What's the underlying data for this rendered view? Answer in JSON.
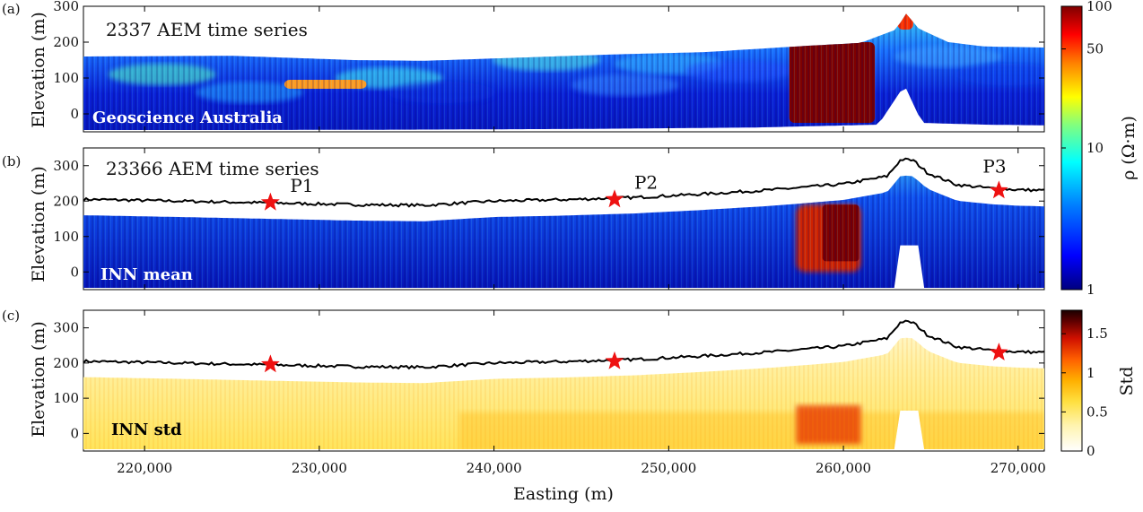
{
  "chart_data": [
    {
      "type": "heatmap",
      "panel_label": "(a)",
      "title": "2337 AEM time series",
      "overlay_label": "Geoscience Australia",
      "ylabel": "Elevation (m)",
      "xlim": [
        216500,
        271500
      ],
      "ylim": [
        -50,
        300
      ],
      "yticks": [
        0,
        100,
        200,
        300
      ],
      "ground_surface_top": [
        [
          216500,
          160
        ],
        [
          225000,
          162
        ],
        [
          232000,
          150
        ],
        [
          236000,
          148
        ],
        [
          241000,
          156
        ],
        [
          247000,
          166
        ],
        [
          252000,
          172
        ],
        [
          258000,
          190
        ],
        [
          261000,
          198
        ],
        [
          263000,
          235
        ],
        [
          263600,
          280
        ],
        [
          264300,
          238
        ],
        [
          266000,
          200
        ],
        [
          268000,
          188
        ],
        [
          271500,
          185
        ]
      ],
      "section_bottom": [
        [
          216500,
          -45
        ],
        [
          225000,
          -45
        ],
        [
          235000,
          -44
        ],
        [
          245000,
          -42
        ],
        [
          255000,
          -38
        ],
        [
          262000,
          -30
        ],
        [
          263500,
          80
        ],
        [
          264500,
          -25
        ],
        [
          268000,
          -30
        ],
        [
          271500,
          -32
        ]
      ],
      "high_resistivity_zones": [
        {
          "x": [
            256900,
            261800
          ],
          "y": [
            -25,
            200
          ],
          "rho": 100
        },
        {
          "x": [
            263100,
            264000
          ],
          "y": [
            235,
            280
          ],
          "rho": 60
        },
        {
          "x": [
            228000,
            232700
          ],
          "y": [
            70,
            95
          ],
          "rho": 30
        }
      ]
    },
    {
      "type": "heatmap",
      "panel_label": "(b)",
      "title": "23366 AEM time series",
      "overlay_label": "INN mean",
      "ylabel": "Elevation (m)",
      "xlim": [
        216500,
        271500
      ],
      "ylim": [
        -50,
        350
      ],
      "yticks": [
        0,
        100,
        200,
        300
      ],
      "surface_line": [
        [
          216500,
          205
        ],
        [
          222000,
          200
        ],
        [
          227000,
          195
        ],
        [
          232000,
          190
        ],
        [
          236000,
          188
        ],
        [
          240000,
          200
        ],
        [
          244000,
          204
        ],
        [
          248000,
          210
        ],
        [
          252000,
          220
        ],
        [
          256000,
          232
        ],
        [
          260000,
          248
        ],
        [
          262500,
          270
        ],
        [
          263300,
          318
        ],
        [
          264000,
          315
        ],
        [
          264800,
          280
        ],
        [
          266500,
          246
        ],
        [
          268500,
          236
        ],
        [
          270000,
          232
        ],
        [
          271500,
          230
        ]
      ],
      "stars": [
        {
          "name": "P1",
          "x": 227200,
          "y": 196
        },
        {
          "name": "P2",
          "x": 246900,
          "y": 205
        },
        {
          "name": "P3",
          "x": 268900,
          "y": 230
        }
      ],
      "high_resistivity_zones": [
        {
          "x": [
            257300,
            261000
          ],
          "y": [
            0,
            190
          ],
          "rho": 80
        }
      ]
    },
    {
      "type": "heatmap",
      "panel_label": "(c)",
      "title": "",
      "overlay_label": "INN std",
      "ylabel": "Elevation (m)",
      "xlabel": "Easting (m)",
      "xlim": [
        216500,
        271500
      ],
      "ylim": [
        -50,
        350
      ],
      "yticks": [
        0,
        100,
        200,
        300
      ],
      "xticks": [
        220000,
        230000,
        240000,
        250000,
        260000,
        270000
      ],
      "xtick_labels": [
        "220,000",
        "230,000",
        "240,000",
        "250,000",
        "260,000",
        "270,000"
      ],
      "stars": [
        {
          "x": 227200,
          "y": 196
        },
        {
          "x": 246900,
          "y": 205
        },
        {
          "x": 268900,
          "y": 230
        }
      ],
      "high_std_zones": [
        {
          "x": [
            257300,
            261000
          ],
          "y": [
            -30,
            80
          ],
          "std": 1.1
        }
      ]
    }
  ],
  "colorbars": {
    "resistivity": {
      "label": "ρ (Ω·m)",
      "scale": "log",
      "range": [
        1,
        100
      ],
      "tick_labels": [
        "100",
        "50",
        "10",
        "1"
      ],
      "colors": [
        "#00007f",
        "#0000ff",
        "#0080ff",
        "#00ffff",
        "#80ff80",
        "#ffff00",
        "#ff8000",
        "#ff0000",
        "#7f0000"
      ]
    },
    "std": {
      "label": "Std",
      "range": [
        0,
        1.8
      ],
      "tick_labels": [
        "1.5",
        "1",
        "0.5",
        "0"
      ],
      "colors": [
        "#ffffff",
        "#fff4b0",
        "#ffe040",
        "#ffb000",
        "#ff6000",
        "#d01000",
        "#600000",
        "#1a0000"
      ]
    }
  },
  "colors": {
    "star": "#ee1111",
    "line": "#000000",
    "overlay_text_blue": "#ffffff",
    "overlay_text_std": "#000000"
  }
}
